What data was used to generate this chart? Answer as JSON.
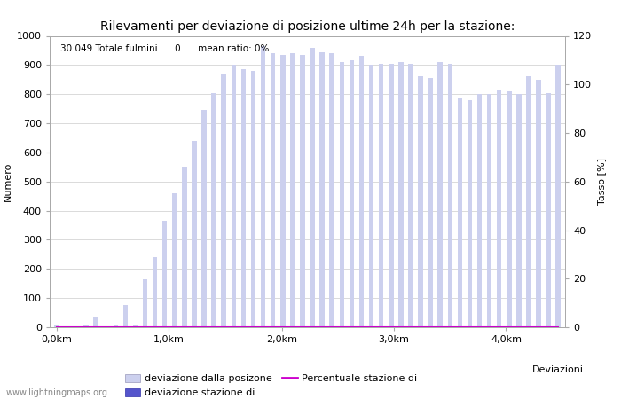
{
  "title": "Rilevamenti per deviazione di posizione ultime 24h per la stazione:",
  "xlabel": "Deviazioni",
  "ylabel_left": "Numero",
  "ylabel_right": "Tasso [%]",
  "annotation": "30.049 Totale fulmini      0      mean ratio: 0%",
  "watermark": "www.lightningmaps.org",
  "bar_values": [
    5,
    2,
    2,
    5,
    35,
    2,
    5,
    75,
    5,
    165,
    240,
    365,
    460,
    550,
    640,
    745,
    805,
    870,
    900,
    885,
    880,
    965,
    940,
    935,
    940,
    935,
    960,
    945,
    940,
    910,
    915,
    930,
    900,
    905,
    905,
    910,
    905,
    860,
    855,
    910,
    905,
    785,
    780,
    800,
    800,
    815,
    810,
    800,
    860,
    850,
    805,
    900
  ],
  "dark_bar_values": [
    0,
    0,
    0,
    0,
    0,
    0,
    0,
    0,
    0,
    0,
    0,
    0,
    0,
    0,
    0,
    0,
    0,
    0,
    0,
    0,
    0,
    0,
    0,
    0,
    0,
    0,
    0,
    0,
    0,
    0,
    0,
    0,
    0,
    0,
    0,
    0,
    0,
    0,
    0,
    0,
    0,
    0,
    0,
    0,
    0,
    0,
    0,
    0,
    0,
    0,
    0,
    0
  ],
  "bar_color": "#ccd0ee",
  "dark_bar_color": "#5555cc",
  "line_color": "#cc00cc",
  "line_values": [
    0,
    0,
    0,
    0,
    0,
    0,
    0,
    0,
    0,
    0,
    0,
    0,
    0,
    0,
    0,
    0,
    0,
    0,
    0,
    0,
    0,
    0,
    0,
    0,
    0,
    0,
    0,
    0,
    0,
    0,
    0,
    0,
    0,
    0,
    0,
    0,
    0,
    0,
    0,
    0,
    0,
    0,
    0,
    0,
    0,
    0,
    0,
    0,
    0,
    0,
    0,
    0
  ],
  "n_bars": 52,
  "ylim_left": [
    0,
    1000
  ],
  "ylim_right": [
    0,
    120
  ],
  "yticks_left": [
    0,
    100,
    200,
    300,
    400,
    500,
    600,
    700,
    800,
    900,
    1000
  ],
  "yticks_right": [
    0,
    20,
    40,
    60,
    80,
    100,
    120
  ],
  "legend_labels": [
    "deviazione dalla posizone",
    "deviazione stazione di",
    "Percentuale stazione di"
  ],
  "bg_color": "#ffffff",
  "grid_color": "#cccccc",
  "title_fontsize": 10,
  "axis_fontsize": 8,
  "tick_fontsize": 8
}
